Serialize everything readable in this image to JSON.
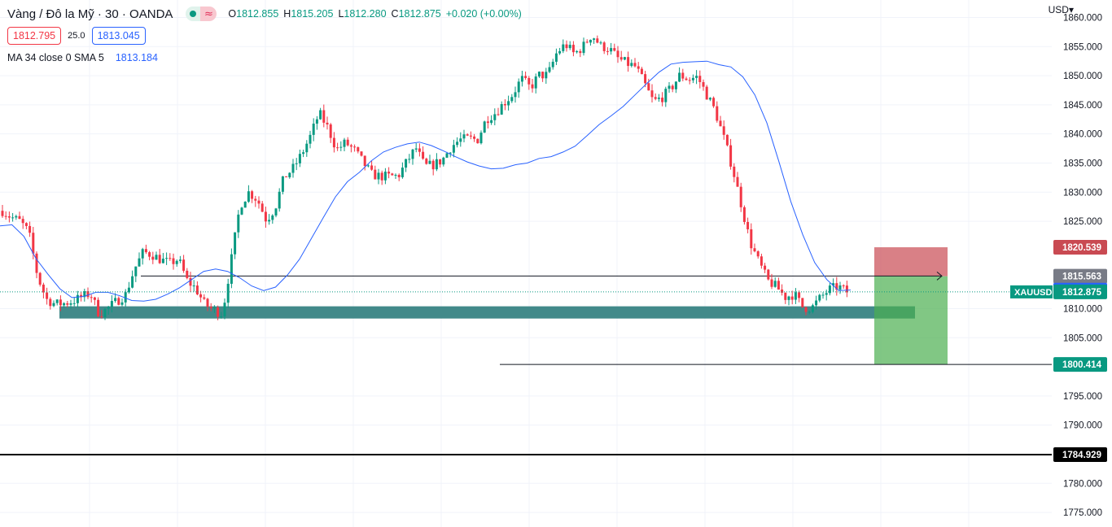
{
  "header": {
    "title": "Vàng / Đô la Mỹ · 30 · OANDA",
    "market_status_icon": "market-open-dot-icon",
    "delayed_icon": "wave-icon",
    "wave_glyph": "≈",
    "ohlc": {
      "o_label": "O",
      "o_value": "1812.855",
      "h_label": "H",
      "h_value": "1815.205",
      "l_label": "L",
      "l_value": "1812.280",
      "c_label": "C",
      "c_value": "1812.875",
      "change": "+0.020 (+0.00%)"
    }
  },
  "trade": {
    "sell_price": "1812.795",
    "spread": "25.0",
    "buy_price": "1813.045"
  },
  "indicator": {
    "label": "MA 34 close 0 SMA 5",
    "value": "1813.184"
  },
  "currency": "USD",
  "colors": {
    "up": "#089981",
    "down": "#f23645",
    "ma": "#2962ff",
    "zone": "#2e7d7d",
    "stop": "#c94a52",
    "target": "#4caf50"
  },
  "chart_data": {
    "type": "candlestick",
    "symbol": "XAUUSD",
    "yticks": [
      1860,
      1855,
      1850,
      1845,
      1840,
      1835,
      1830,
      1825,
      1810,
      1805,
      1795,
      1790,
      1780,
      1775
    ],
    "ytick_labels": [
      "1860.000",
      "1855.000",
      "1850.000",
      "1845.000",
      "1840.000",
      "1835.000",
      "1830.000",
      "1825.000",
      "1810.000",
      "1805.000",
      "1795.000",
      "1790.000",
      "1780.000",
      "1775.000"
    ],
    "ylim": [
      1772.5,
      1863.0
    ],
    "last_price": 1812.875,
    "price_tags": [
      {
        "name": "stop-loss-tag",
        "label": "1820.539",
        "value": 1820.539,
        "color": "#c94a52"
      },
      {
        "name": "entry-tag",
        "label": "1815.563",
        "value": 1815.563,
        "color": "#787b86"
      },
      {
        "name": "ma-value-tag",
        "label": "1813.184",
        "value": 1813.184,
        "color": "#2962ff"
      },
      {
        "name": "last-price-tag",
        "label": "1812.875",
        "value": 1812.875,
        "color": "#089981"
      },
      {
        "name": "take-profit-tag",
        "label": "1800.414",
        "value": 1800.414,
        "color": "#089981"
      },
      {
        "name": "support-line-tag",
        "label": "1784.929",
        "value": 1784.929,
        "color": "#000000"
      }
    ],
    "horizontal_lines": [
      {
        "name": "resistance-ray",
        "price": 1815.6,
        "style": "thin-ray"
      },
      {
        "name": "target-line",
        "price": 1800.414,
        "style": "thin"
      },
      {
        "name": "support-line",
        "price": 1784.929,
        "style": "bold"
      }
    ],
    "zone": {
      "name": "demand-zone",
      "top": 1810.4,
      "bottom": 1808.3
    },
    "position": {
      "entry": 1815.563,
      "stop": 1820.539,
      "target": 1800.414
    },
    "close_path": [
      1826.8,
      1825.7,
      1825.0,
      1823.1,
      1815.5,
      1811.6,
      1810.8,
      1810.9,
      1811.3,
      1812.0,
      1812.6,
      1809.0,
      1810.1,
      1811.3,
      1812.4,
      1816.8,
      1819.7,
      1819.3,
      1818.4,
      1817.8,
      1818.5,
      1814.8,
      1813.4,
      1810.7,
      1809.8,
      1809.1,
      1818.2,
      1827.7,
      1830.0,
      1828.7,
      1825.2,
      1827.3,
      1832.5,
      1834.0,
      1836.5,
      1839.6,
      1843.6,
      1841.0,
      1837.3,
      1838.5,
      1837.2,
      1835.1,
      1833.0,
      1832.7,
      1832.7,
      1832.8,
      1835.3,
      1837.6,
      1834.4,
      1834.7,
      1835.5,
      1837.8,
      1839.0,
      1839.2,
      1839.0,
      1842.6,
      1843.6,
      1845.3,
      1846.8,
      1849.5,
      1847.9,
      1850.1,
      1850.1,
      1853.9,
      1855.4,
      1853.7,
      1855.0,
      1857.1,
      1855.1,
      1854.6,
      1852.9,
      1852.1,
      1851.5,
      1848.5,
      1845.5,
      1846.3,
      1847.8,
      1850.1,
      1849.4,
      1849.8,
      1846.9,
      1844.0,
      1839.3,
      1834.1,
      1827.8,
      1821.4,
      1817.9,
      1814.8,
      1813.7,
      1812.0,
      1812.5,
      1810.2,
      1810.1,
      1811.9,
      1813.3,
      1813.8,
      1812.9
    ],
    "ma_path": [
      1824.2,
      1824.4,
      1822.4,
      1818.6,
      1815.9,
      1813.4,
      1811.9,
      1812.1,
      1812.8,
      1812.8,
      1812.2,
      1811.4,
      1811.3,
      1811.6,
      1812.5,
      1813.6,
      1815.0,
      1816.4,
      1816.8,
      1816.4,
      1815.3,
      1813.9,
      1813.1,
      1813.7,
      1815.8,
      1818.5,
      1822.1,
      1825.7,
      1829.2,
      1831.8,
      1833.4,
      1835.4,
      1836.9,
      1837.7,
      1838.3,
      1838.6,
      1838.0,
      1837.1,
      1836.1,
      1835.2,
      1834.5,
      1834.0,
      1834.1,
      1834.7,
      1835.0,
      1835.8,
      1836.1,
      1836.9,
      1837.9,
      1839.7,
      1841.6,
      1843.1,
      1844.7,
      1846.7,
      1848.7,
      1850.6,
      1852.0,
      1852.3,
      1852.4,
      1852.5,
      1851.9,
      1851.5,
      1849.8,
      1846.7,
      1841.9,
      1835.3,
      1828.4,
      1822.7,
      1817.9,
      1815.0,
      1813.1,
      1813.2
    ]
  }
}
